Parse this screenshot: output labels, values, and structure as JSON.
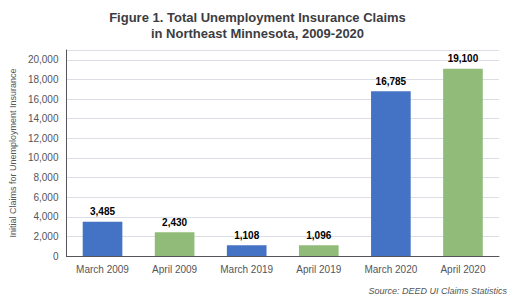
{
  "chart_data": {
    "type": "bar",
    "title": "Figure 1. Total Unemployment Insurance Claims\nin Northeast Minnesota, 2009-2020",
    "ylabel": "Initial Claims for Unemployment Insurance",
    "annotations": [
      "Source: DEED UI Claims Statistics"
    ],
    "categories": [
      "March 2009",
      "April 2009",
      "March 2019",
      "April 2019",
      "March 2020",
      "April 2020"
    ],
    "values": [
      3485,
      2430,
      1108,
      1096,
      16785,
      19100
    ],
    "value_labels": [
      "3,485",
      "2,430",
      "1,108",
      "1,096",
      "16,785",
      "19,100"
    ],
    "data_labels": true,
    "colors": [
      "#4472c4",
      "#90bb78",
      "#4472c4",
      "#90bb78",
      "#4472c4",
      "#90bb78"
    ],
    "ylim": [
      0,
      21000
    ],
    "yticks": [
      0,
      {
        "value": 2000,
        "label": "2,000"
      },
      {
        "value": 4000,
        "label": "4,000"
      },
      {
        "value": 6000,
        "label": "6,000"
      },
      {
        "value": 8000,
        "label": "8,000"
      },
      {
        "value": 10000,
        "label": "10,000"
      },
      {
        "value": 12000,
        "label": "12,000"
      },
      {
        "value": 14000,
        "label": "14,000"
      },
      {
        "value": 16000,
        "label": "16,000"
      },
      {
        "value": 18000,
        "label": "18,000"
      },
      {
        "value": 20000,
        "label": "20,000"
      }
    ],
    "grid": true
  }
}
